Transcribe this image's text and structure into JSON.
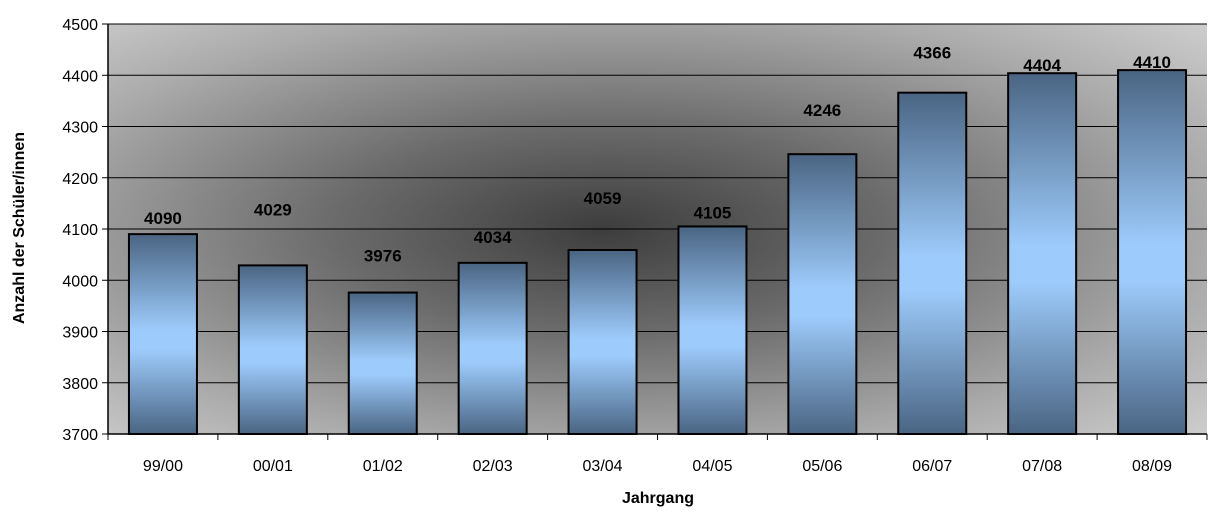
{
  "chart_data": {
    "type": "bar",
    "title": "",
    "xlabel": "Jahrgang",
    "ylabel": "Anzahl der Schüler/innen",
    "categories": [
      "99/00",
      "00/01",
      "01/02",
      "02/03",
      "03/04",
      "04/05",
      "05/06",
      "06/07",
      "07/08",
      "08/09"
    ],
    "values": [
      4090,
      4029,
      3976,
      4034,
      4059,
      4105,
      4246,
      4366,
      4404,
      4410
    ],
    "data_labels": [
      "4090",
      "4029",
      "3976",
      "4034",
      "4059",
      "4105",
      "4246",
      "4366",
      "4404",
      "4410"
    ],
    "ylim": [
      3700,
      4500
    ],
    "yticks": [
      "3700",
      "3800",
      "3900",
      "4000",
      "4100",
      "4200",
      "4300",
      "4400",
      "4500"
    ],
    "grid": true,
    "legend": "none",
    "colors": {
      "bar_edge": "#4a6583",
      "bar_center": "#9dcbfb",
      "bar_outline": "#000000",
      "plot_light": "#c8c8c8",
      "plot_dark": "#3a3a3a",
      "gridline": "#000000"
    }
  }
}
